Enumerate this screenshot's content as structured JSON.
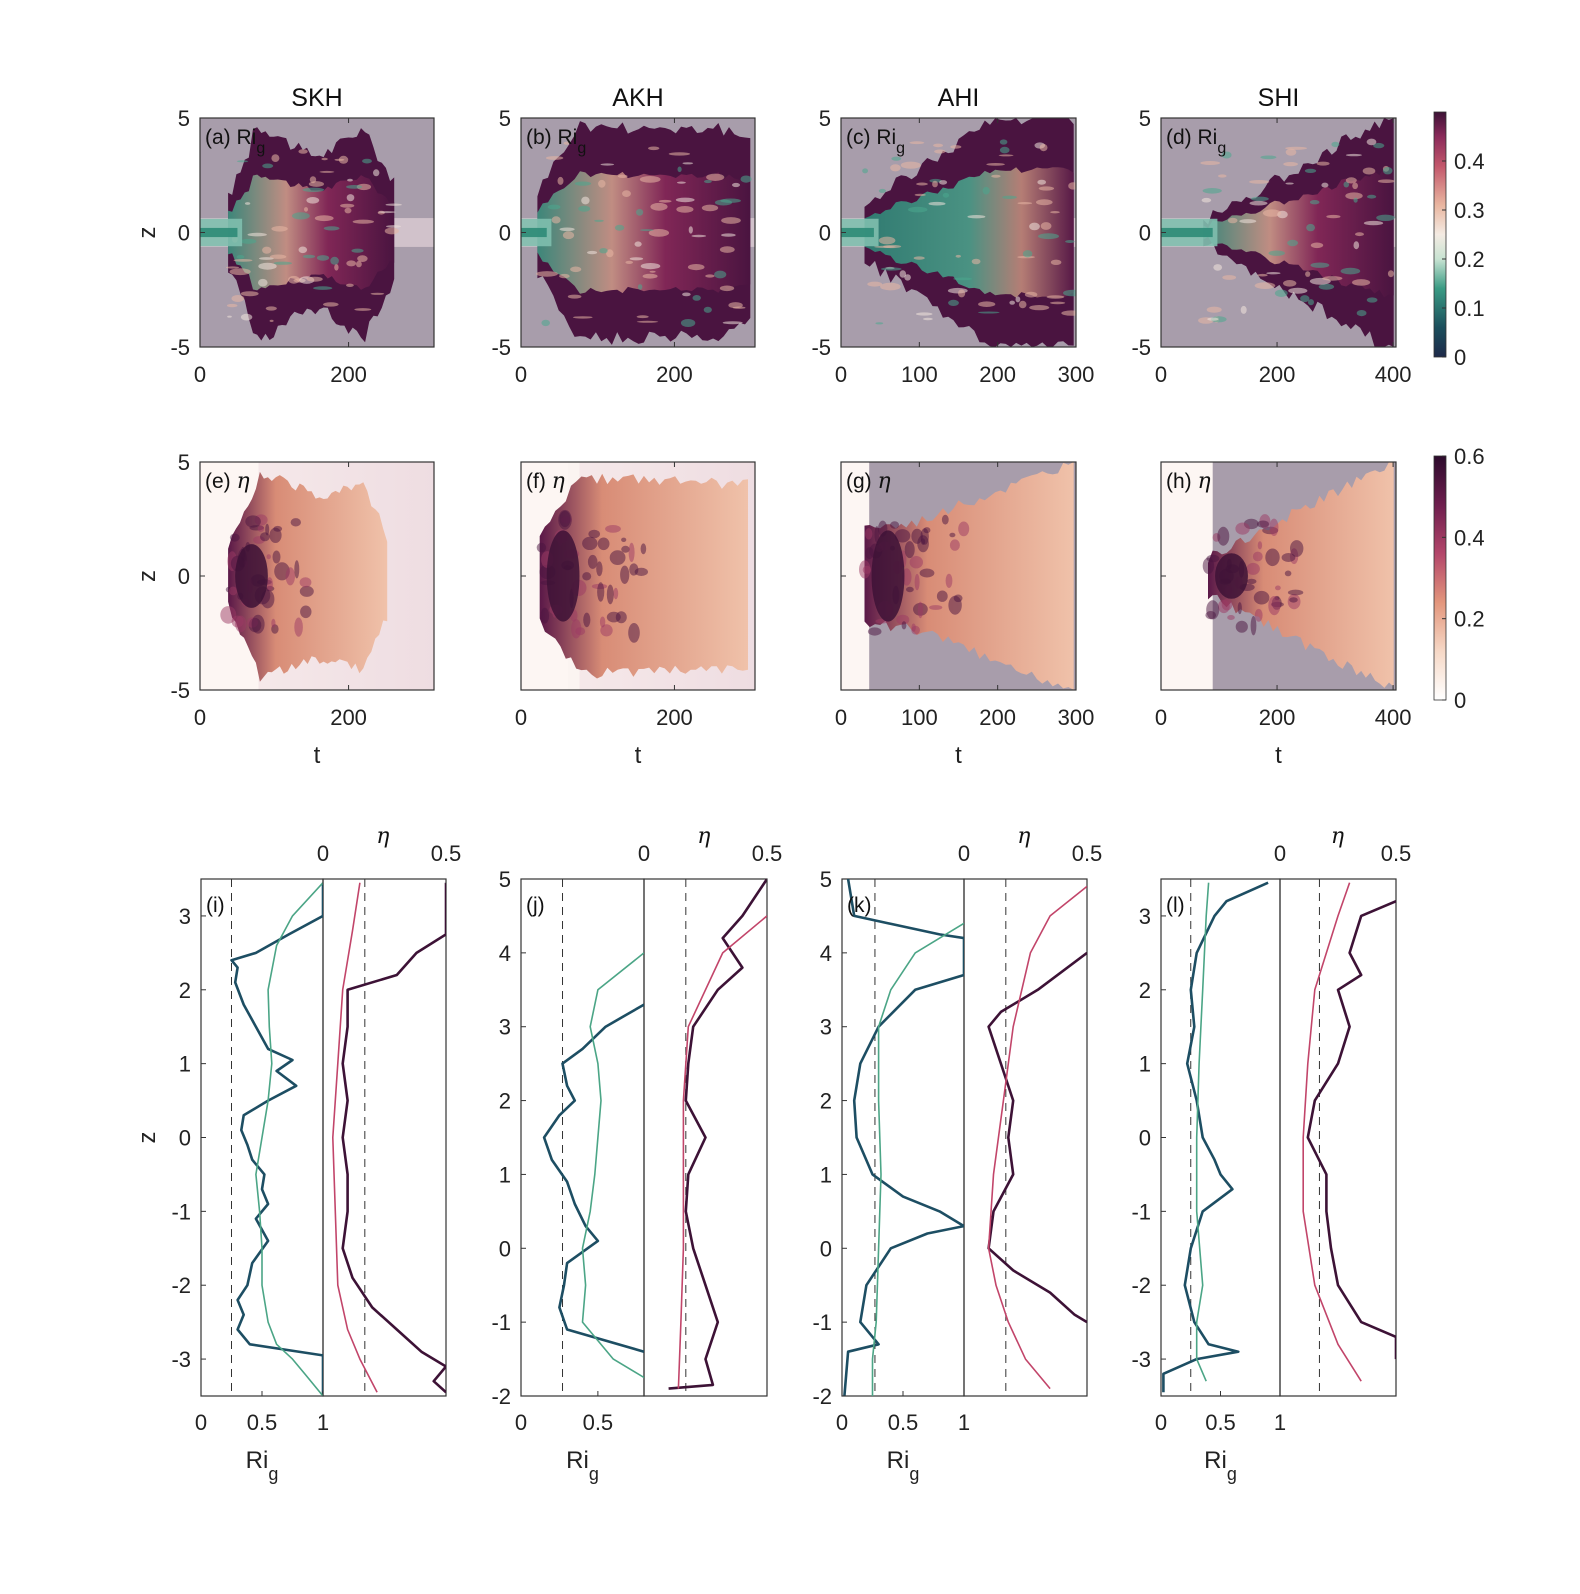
{
  "columns": [
    "SKH",
    "AKH",
    "AHI",
    "SHI"
  ],
  "colors": {
    "ri_dark": "#1d4e63",
    "ri_light": "#4ba586",
    "eta_dark": "#3d1236",
    "eta_light": "#c2456a",
    "masked": "#a89dab"
  },
  "chart_data": [
    {
      "panel": "(a)",
      "type": "heatmap",
      "variable": "Ri",
      "variable_sub": "g",
      "title": "SKH",
      "ylabel": "z",
      "xlabel": "",
      "x_ticks": [
        "0",
        "200"
      ],
      "y_ticks": [
        "5",
        "0",
        "-5"
      ],
      "xlim": [
        0,
        315
      ],
      "ylim": [
        -5,
        5
      ]
    },
    {
      "panel": "(b)",
      "type": "heatmap",
      "variable": "Ri",
      "variable_sub": "g",
      "title": "AKH",
      "ylabel": "",
      "xlabel": "",
      "x_ticks": [
        "0",
        "200"
      ],
      "y_ticks": [
        "5",
        "0",
        "-5"
      ],
      "xlim": [
        0,
        305
      ],
      "ylim": [
        -5,
        5
      ]
    },
    {
      "panel": "(c)",
      "type": "heatmap",
      "variable": "Ri",
      "variable_sub": "g",
      "title": "AHI",
      "ylabel": "",
      "xlabel": "",
      "x_ticks": [
        "0",
        "100",
        "200",
        "300"
      ],
      "y_ticks": [
        "5",
        "0",
        "-5"
      ],
      "xlim": [
        0,
        300
      ],
      "ylim": [
        -5,
        5
      ]
    },
    {
      "panel": "(d)",
      "type": "heatmap",
      "variable": "Ri",
      "variable_sub": "g",
      "title": "SHI",
      "ylabel": "",
      "xlabel": "",
      "x_ticks": [
        "0",
        "200",
        "400"
      ],
      "y_ticks": [
        "5",
        "0",
        "-5"
      ],
      "xlim": [
        0,
        405
      ],
      "ylim": [
        -5,
        5
      ],
      "colorbar": {
        "ticks": [
          "0",
          "0.1",
          "0.2",
          "0.3",
          "0.4"
        ],
        "range": [
          0,
          0.5
        ]
      }
    },
    {
      "panel": "(e)",
      "type": "heatmap",
      "variable": "η",
      "variable_sub": "",
      "ylabel": "z",
      "xlabel": "t",
      "x_ticks": [
        "0",
        "200"
      ],
      "y_ticks": [
        "5",
        "0",
        "-5"
      ],
      "xlim": [
        0,
        315
      ],
      "ylim": [
        -5,
        5
      ]
    },
    {
      "panel": "(f)",
      "type": "heatmap",
      "variable": "η",
      "variable_sub": "",
      "ylabel": "",
      "xlabel": "t",
      "x_ticks": [
        "0",
        "200"
      ],
      "y_ticks": [],
      "xlim": [
        0,
        305
      ],
      "ylim": [
        -5,
        5
      ]
    },
    {
      "panel": "(g)",
      "type": "heatmap",
      "variable": "η",
      "variable_sub": "",
      "ylabel": "",
      "xlabel": "t",
      "x_ticks": [
        "0",
        "100",
        "200",
        "300"
      ],
      "y_ticks": [],
      "xlim": [
        0,
        300
      ],
      "ylim": [
        -5,
        5
      ]
    },
    {
      "panel": "(h)",
      "type": "heatmap",
      "variable": "η",
      "variable_sub": "",
      "ylabel": "",
      "xlabel": "t",
      "x_ticks": [
        "0",
        "200",
        "400"
      ],
      "y_ticks": [],
      "xlim": [
        0,
        405
      ],
      "ylim": [
        -5,
        5
      ],
      "colorbar": {
        "ticks": [
          "0",
          "0.2",
          "0.4",
          "0.6"
        ],
        "range": [
          0,
          0.6
        ]
      }
    },
    {
      "panel": "(i)",
      "type": "line",
      "ylabel": "z",
      "ri_xlabel": "Ri",
      "ri_xlabel_sub": "g",
      "eta_xlabel": "η",
      "ylim": [
        -3.5,
        3.5
      ],
      "y_ticks": [
        3,
        2,
        1,
        0,
        -1,
        -2,
        -3
      ],
      "ri_xlim": [
        0,
        1
      ],
      "ri_ticks": [
        "0",
        "0.5",
        "1"
      ],
      "eta_xlim": [
        0,
        0.5
      ],
      "eta_ticks": [
        "0",
        "0.5"
      ],
      "ri_ref": 0.25,
      "eta_ref": 0.17,
      "series": [
        {
          "key": "ri_dark",
          "z": [
            3.45,
            3.0,
            2.75,
            2.5,
            2.4,
            2.3,
            2.1,
            1.8,
            1.5,
            1.2,
            1.05,
            0.9,
            0.7,
            0.5,
            0.3,
            0.1,
            -0.1,
            -0.3,
            -0.5,
            -0.7,
            -0.9,
            -1.1,
            -1.4,
            -1.7,
            -2.0,
            -2.2,
            -2.4,
            -2.6,
            -2.8,
            -2.95,
            -3.5
          ],
          "x": [
            1.0,
            1.0,
            0.72,
            0.45,
            0.25,
            0.3,
            0.28,
            0.35,
            0.45,
            0.55,
            0.75,
            0.62,
            0.78,
            0.55,
            0.35,
            0.33,
            0.38,
            0.42,
            0.52,
            0.5,
            0.55,
            0.45,
            0.55,
            0.42,
            0.38,
            0.3,
            0.35,
            0.3,
            0.4,
            1.0,
            1.0
          ]
        },
        {
          "key": "ri_light",
          "z": [
            3.45,
            3.0,
            2.6,
            2.0,
            1.5,
            1.0,
            0.5,
            0.0,
            -0.5,
            -1.0,
            -1.5,
            -2.0,
            -2.5,
            -2.8,
            -3.0,
            -3.2,
            -3.5
          ],
          "x": [
            1.0,
            0.75,
            0.62,
            0.55,
            0.56,
            0.58,
            0.55,
            0.5,
            0.45,
            0.48,
            0.5,
            0.5,
            0.55,
            0.62,
            0.75,
            0.85,
            1.0
          ]
        },
        {
          "key": "eta_dark",
          "z": [
            3.45,
            2.75,
            2.5,
            2.2,
            2.0,
            1.5,
            1.0,
            0.5,
            0.0,
            -0.5,
            -1.0,
            -1.5,
            -1.9,
            -2.3,
            -2.6,
            -2.9,
            -3.1,
            -3.3,
            -3.45
          ],
          "x": [
            0.5,
            0.5,
            0.38,
            0.3,
            0.1,
            0.1,
            0.08,
            0.1,
            0.08,
            0.1,
            0.1,
            0.08,
            0.12,
            0.2,
            0.3,
            0.4,
            0.5,
            0.45,
            0.5
          ]
        },
        {
          "key": "eta_light",
          "z": [
            3.45,
            2.8,
            2.0,
            1.0,
            0.0,
            -1.0,
            -2.0,
            -2.6,
            -3.0,
            -3.45
          ],
          "x": [
            0.15,
            0.12,
            0.08,
            0.06,
            0.04,
            0.05,
            0.06,
            0.1,
            0.15,
            0.22
          ]
        }
      ]
    },
    {
      "panel": "(j)",
      "type": "line",
      "ylabel": "",
      "ri_xlabel": "Ri",
      "ri_xlabel_sub": "g",
      "eta_xlabel": "η",
      "ylim": [
        -2,
        5
      ],
      "y_ticks": [
        5,
        4,
        3,
        2,
        1,
        0,
        -1,
        -2
      ],
      "ri_xlim": [
        0,
        0.8
      ],
      "ri_ticks": [
        "0",
        "0.5"
      ],
      "eta_xlim": [
        0,
        0.5
      ],
      "eta_ticks": [
        "0",
        "0.5"
      ],
      "ri_ref": 0.27,
      "eta_ref": 0.17,
      "series": [
        {
          "key": "ri_dark",
          "z": [
            3.3,
            3.0,
            2.7,
            2.5,
            2.2,
            2.0,
            1.8,
            1.5,
            1.2,
            0.9,
            0.6,
            0.3,
            0.1,
            -0.2,
            -0.5,
            -0.8,
            -1.1,
            -1.4
          ],
          "x": [
            0.8,
            0.55,
            0.4,
            0.27,
            0.3,
            0.35,
            0.25,
            0.15,
            0.2,
            0.3,
            0.35,
            0.42,
            0.5,
            0.3,
            0.28,
            0.25,
            0.3,
            0.8
          ]
        },
        {
          "key": "ri_light",
          "z": [
            4.0,
            3.5,
            3.0,
            2.5,
            2.0,
            1.5,
            1.0,
            0.5,
            0.0,
            -0.5,
            -1.0,
            -1.5,
            -1.75
          ],
          "x": [
            0.8,
            0.5,
            0.45,
            0.5,
            0.52,
            0.5,
            0.48,
            0.45,
            0.4,
            0.42,
            0.4,
            0.6,
            0.8
          ]
        },
        {
          "key": "eta_dark",
          "z": [
            5.0,
            4.5,
            4.2,
            3.8,
            3.5,
            3.0,
            2.5,
            2.0,
            1.5,
            1.0,
            0.5,
            0.0,
            -0.5,
            -1.0,
            -1.5,
            -1.85,
            -1.9
          ],
          "x": [
            0.5,
            0.4,
            0.32,
            0.4,
            0.3,
            0.2,
            0.18,
            0.17,
            0.25,
            0.18,
            0.17,
            0.2,
            0.25,
            0.3,
            0.25,
            0.28,
            0.1
          ]
        },
        {
          "key": "eta_light",
          "z": [
            4.5,
            4.0,
            3.0,
            2.0,
            1.0,
            0.0,
            -1.0,
            -1.9
          ],
          "x": [
            0.5,
            0.32,
            0.18,
            0.16,
            0.16,
            0.16,
            0.15,
            0.14
          ]
        }
      ]
    },
    {
      "panel": "(k)",
      "type": "line",
      "ylabel": "",
      "ri_xlabel": "Ri",
      "ri_xlabel_sub": "g",
      "eta_xlabel": "η",
      "ylim": [
        -2,
        5
      ],
      "y_ticks": [
        5,
        4,
        3,
        2,
        1,
        0,
        -1,
        -2
      ],
      "ri_xlim": [
        0,
        1
      ],
      "ri_ticks": [
        "0",
        "0.5",
        "1"
      ],
      "eta_xlim": [
        0,
        0.5
      ],
      "eta_ticks": [
        "0",
        "0.5"
      ],
      "ri_ref": 0.27,
      "eta_ref": 0.17,
      "series": [
        {
          "key": "ri_dark",
          "z": [
            5.0,
            4.5,
            4.25,
            4.2,
            3.7,
            3.5,
            3.0,
            2.5,
            2.0,
            1.5,
            1.0,
            0.7,
            0.5,
            0.3,
            0.2,
            0.0,
            -0.5,
            -1.0,
            -1.3,
            -1.4,
            -2.0
          ],
          "x": [
            0.05,
            0.1,
            0.8,
            1.0,
            1.0,
            0.6,
            0.3,
            0.15,
            0.1,
            0.12,
            0.25,
            0.5,
            0.8,
            1.0,
            0.7,
            0.4,
            0.2,
            0.15,
            0.3,
            0.05,
            0.02
          ]
        },
        {
          "key": "ri_light",
          "z": [
            4.4,
            4.0,
            3.5,
            3.0,
            2.0,
            1.0,
            0.0,
            -1.0,
            -1.5,
            -2.0
          ],
          "x": [
            1.0,
            0.6,
            0.4,
            0.3,
            0.3,
            0.32,
            0.3,
            0.28,
            0.25,
            0.25
          ]
        },
        {
          "key": "eta_dark",
          "z": [
            4.0,
            3.5,
            3.2,
            3.0,
            2.5,
            2.0,
            1.5,
            1.0,
            0.5,
            0.0,
            -0.3,
            -0.6,
            -0.9,
            -1.0
          ],
          "x": [
            0.5,
            0.3,
            0.15,
            0.1,
            0.15,
            0.2,
            0.18,
            0.2,
            0.12,
            0.1,
            0.2,
            0.35,
            0.45,
            0.5
          ]
        },
        {
          "key": "eta_light",
          "z": [
            4.9,
            4.5,
            4.0,
            3.0,
            2.0,
            1.0,
            0.0,
            -0.5,
            -1.0,
            -1.5,
            -1.9
          ],
          "x": [
            0.5,
            0.35,
            0.27,
            0.2,
            0.16,
            0.12,
            0.1,
            0.13,
            0.18,
            0.25,
            0.35
          ]
        }
      ]
    },
    {
      "panel": "(l)",
      "type": "line",
      "ylabel": "",
      "ri_xlabel": "Ri",
      "ri_xlabel_sub": "g",
      "eta_xlabel": "η",
      "ylim": [
        -3.5,
        3.5
      ],
      "y_ticks": [
        3,
        2,
        1,
        0,
        -1,
        -2,
        -3
      ],
      "ri_xlim": [
        0,
        1
      ],
      "ri_ticks": [
        "0",
        "0.5",
        "1"
      ],
      "eta_xlim": [
        0,
        0.5
      ],
      "eta_ticks": [
        "0",
        "0.5"
      ],
      "ri_ref": 0.25,
      "eta_ref": 0.17,
      "series": [
        {
          "key": "ri_dark",
          "z": [
            3.45,
            3.2,
            3.0,
            2.5,
            2.0,
            1.5,
            1.0,
            0.5,
            0.0,
            -0.3,
            -0.5,
            -0.7,
            -1.0,
            -1.5,
            -2.0,
            -2.5,
            -2.8,
            -2.9,
            -3.0,
            -3.2,
            -3.45
          ],
          "x": [
            0.9,
            0.55,
            0.45,
            0.3,
            0.25,
            0.28,
            0.22,
            0.3,
            0.35,
            0.45,
            0.5,
            0.6,
            0.35,
            0.25,
            0.2,
            0.28,
            0.4,
            0.65,
            0.3,
            0.02,
            0.02
          ]
        },
        {
          "key": "ri_light",
          "z": [
            3.45,
            3.0,
            2.0,
            1.0,
            0.0,
            -1.0,
            -2.0,
            -2.5,
            -3.0,
            -3.3
          ],
          "x": [
            0.4,
            0.38,
            0.35,
            0.32,
            0.3,
            0.3,
            0.35,
            0.3,
            0.3,
            0.38
          ]
        },
        {
          "key": "eta_dark",
          "z": [
            3.2,
            3.0,
            2.5,
            2.2,
            2.0,
            1.5,
            1.0,
            0.5,
            0.0,
            -0.5,
            -1.0,
            -1.5,
            -2.0,
            -2.5,
            -2.7,
            -3.0
          ],
          "x": [
            0.5,
            0.35,
            0.3,
            0.35,
            0.25,
            0.3,
            0.25,
            0.15,
            0.12,
            0.2,
            0.2,
            0.22,
            0.25,
            0.35,
            0.5,
            0.5
          ]
        },
        {
          "key": "eta_light",
          "z": [
            3.45,
            3.0,
            2.0,
            1.0,
            0.0,
            -1.0,
            -2.0,
            -2.8,
            -3.3
          ],
          "x": [
            0.3,
            0.25,
            0.15,
            0.12,
            0.1,
            0.1,
            0.15,
            0.25,
            0.35
          ]
        }
      ]
    }
  ]
}
